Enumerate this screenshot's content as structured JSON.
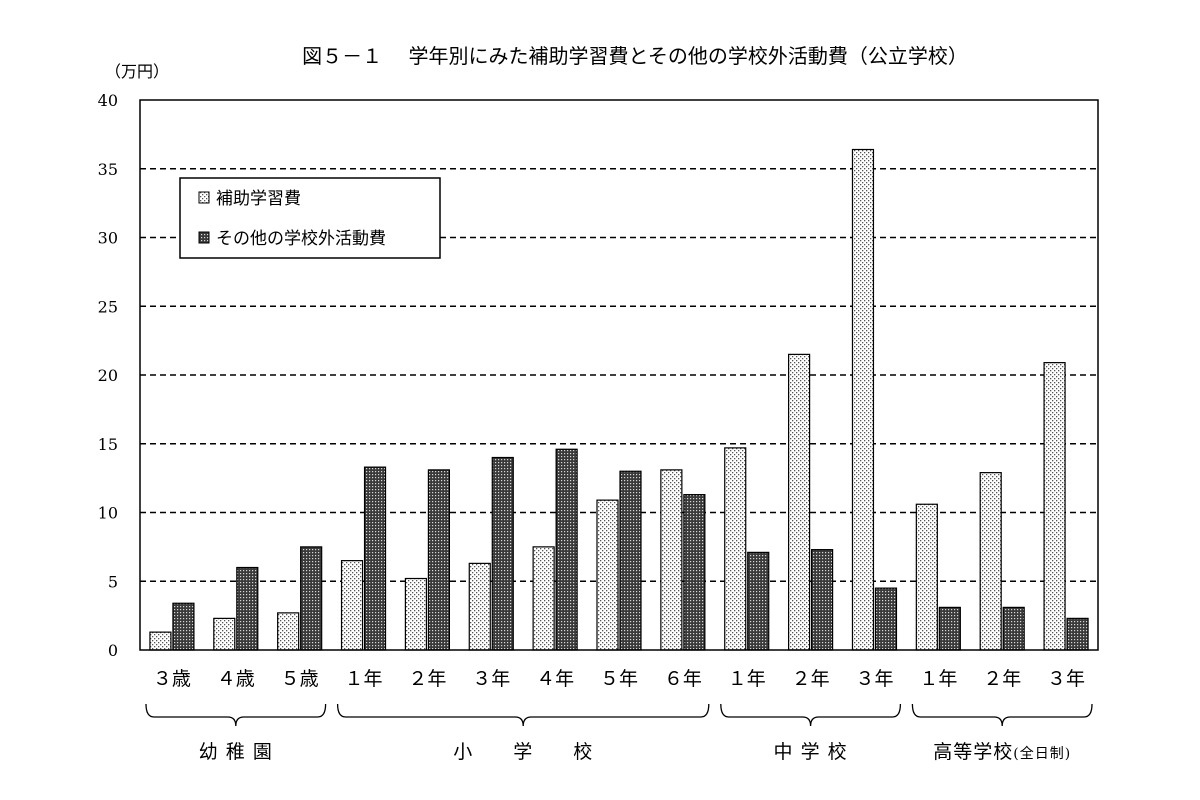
{
  "chart_data": {
    "type": "bar",
    "title": "図５－１　 学年別にみた補助学習費とその他の学校外活動費（公立学校）",
    "unit_label": "（万円）",
    "ylim": [
      0,
      40
    ],
    "yticks": [
      0,
      5,
      10,
      15,
      20,
      25,
      30,
      35,
      40
    ],
    "grid": "dashed horizontal",
    "legend_position": "top-left",
    "categories": [
      "３歳",
      "４歳",
      "５歳",
      "１年",
      "２年",
      "３年",
      "４年",
      "５年",
      "６年",
      "１年",
      "２年",
      "３年",
      "１年",
      "２年",
      "３年"
    ],
    "groups": [
      {
        "label": "幼 稚 園",
        "span": [
          0,
          2
        ]
      },
      {
        "label": "小　　学　　校",
        "span": [
          3,
          8
        ]
      },
      {
        "label": "中 学 校",
        "span": [
          9,
          11
        ]
      },
      {
        "label": "高等学校",
        "sublabel": "(全日制)",
        "span": [
          12,
          14
        ]
      }
    ],
    "series": [
      {
        "name": "補助学習費",
        "color": "#f4f4f4",
        "values": [
          1.3,
          2.3,
          2.7,
          6.5,
          5.2,
          6.3,
          7.5,
          10.9,
          13.1,
          14.7,
          21.5,
          36.4,
          10.6,
          12.9,
          20.9
        ]
      },
      {
        "name": "その他の学校外活動費",
        "color": "#7a7a7a",
        "values": [
          3.4,
          6.0,
          7.5,
          13.3,
          13.1,
          14.0,
          14.6,
          13.0,
          11.3,
          7.1,
          7.3,
          4.5,
          3.1,
          3.1,
          2.3
        ]
      }
    ]
  }
}
